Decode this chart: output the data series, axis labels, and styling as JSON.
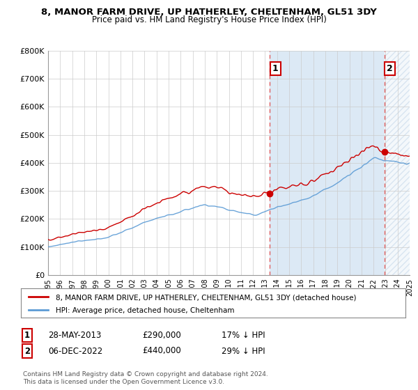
{
  "title": "8, MANOR FARM DRIVE, UP HATHERLEY, CHELTENHAM, GL51 3DY",
  "subtitle": "Price paid vs. HM Land Registry's House Price Index (HPI)",
  "ylim": [
    0,
    800000
  ],
  "yticks": [
    0,
    100000,
    200000,
    300000,
    400000,
    500000,
    600000,
    700000,
    800000
  ],
  "ytick_labels": [
    "£0",
    "£100K",
    "£200K",
    "£300K",
    "£400K",
    "£500K",
    "£600K",
    "£700K",
    "£800K"
  ],
  "xlim": [
    1995,
    2025
  ],
  "sale1_date": 2013.41,
  "sale1_price": 290000,
  "sale1_label": "1",
  "sale2_date": 2022.92,
  "sale2_price": 440000,
  "sale2_label": "2",
  "hpi_color": "#5b9bd5",
  "red_color": "#cc0000",
  "dashed_color": "#e06060",
  "fill_color": "#dce9f5",
  "hatch_color": "#b0c8e0",
  "background_color": "#ffffff",
  "grid_color": "#cccccc",
  "legend_entry1": "8, MANOR FARM DRIVE, UP HATHERLEY, CHELTENHAM, GL51 3DY (detached house)",
  "legend_entry2": "HPI: Average price, detached house, Cheltenham",
  "note1_num": "1",
  "note1_date": "28-MAY-2013",
  "note1_price": "£290,000",
  "note1_hpi": "17% ↓ HPI",
  "note2_num": "2",
  "note2_date": "06-DEC-2022",
  "note2_price": "£440,000",
  "note2_hpi": "29% ↓ HPI",
  "copyright": "Contains HM Land Registry data © Crown copyright and database right 2024.\nThis data is licensed under the Open Government Licence v3.0."
}
